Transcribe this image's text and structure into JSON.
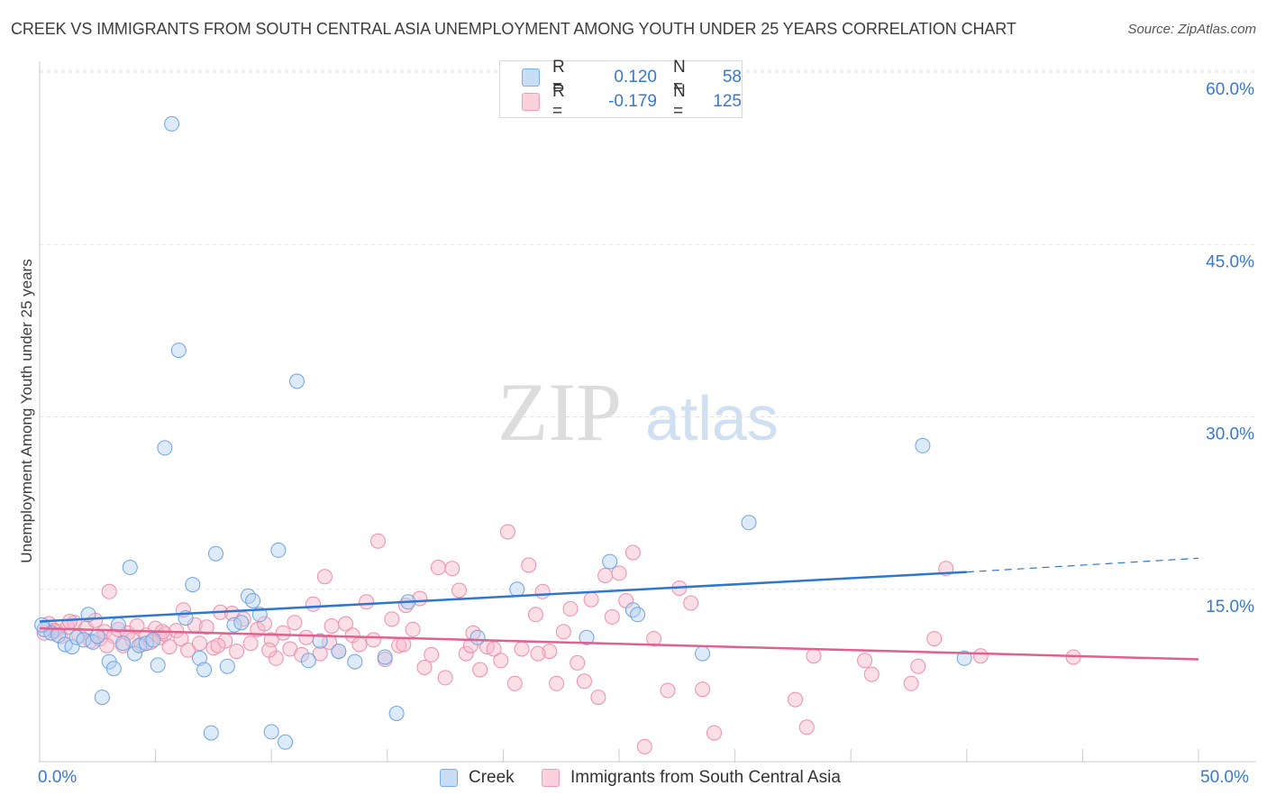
{
  "title": "CREEK VS IMMIGRANTS FROM SOUTH CENTRAL ASIA UNEMPLOYMENT AMONG YOUTH UNDER 25 YEARS CORRELATION CHART",
  "source": "Source: ZipAtlas.com",
  "watermark": {
    "zip": "ZIP",
    "atlas": "atlas"
  },
  "legend_top": {
    "r_label": "R =",
    "n_label": "N =",
    "rows": [
      {
        "name": "Creek",
        "r": "0.120",
        "n": "58",
        "color": "#7aaee8"
      },
      {
        "name": "Immigrants from South Central Asia",
        "r": "-0.179",
        "n": "125",
        "color": "#f29bb5"
      }
    ]
  },
  "legend_bottom": [
    "Creek",
    "Immigrants from South Central Asia"
  ],
  "chart_data": {
    "type": "scatter",
    "title": "CREEK VS IMMIGRANTS FROM SOUTH CENTRAL ASIA UNEMPLOYMENT AMONG YOUTH UNDER 25 YEARS CORRELATION CHART",
    "xlabel": "",
    "ylabel": "Unemployment Among Youth under 25 years",
    "xlim": [
      0,
      50
    ],
    "ylim": [
      0,
      60
    ],
    "x_tick_labels": [
      "0.0%",
      "50.0%"
    ],
    "y_ticks": [
      15,
      30,
      45,
      60
    ],
    "y_tick_labels": [
      "15.0%",
      "30.0%",
      "45.0%",
      "60.0%"
    ],
    "grid": true,
    "legend_position": "top-center",
    "series": [
      {
        "name": "Creek",
        "color": "#7aaee8",
        "line_color": "#2f76cf",
        "trend": {
          "x": [
            0,
            40
          ],
          "y": [
            12.2,
            16.5
          ],
          "dashed_to": [
            50,
            17.7
          ]
        },
        "points": [
          [
            0.2,
            11.5
          ],
          [
            0.5,
            11.2
          ],
          [
            0.8,
            11.0
          ],
          [
            1.1,
            10.2
          ],
          [
            1.4,
            10.0
          ],
          [
            1.6,
            10.8
          ],
          [
            1.9,
            10.6
          ],
          [
            2.1,
            12.8
          ],
          [
            2.3,
            10.4
          ],
          [
            2.5,
            10.9
          ],
          [
            2.7,
            5.6
          ],
          [
            3.0,
            8.7
          ],
          [
            3.2,
            8.1
          ],
          [
            3.4,
            11.9
          ],
          [
            3.6,
            10.3
          ],
          [
            3.9,
            16.9
          ],
          [
            4.1,
            9.4
          ],
          [
            4.3,
            10.1
          ],
          [
            4.6,
            10.3
          ],
          [
            4.9,
            10.6
          ],
          [
            5.1,
            8.4
          ],
          [
            5.4,
            27.3
          ],
          [
            5.7,
            55.5
          ],
          [
            6.0,
            35.8
          ],
          [
            6.3,
            12.5
          ],
          [
            6.6,
            15.4
          ],
          [
            6.9,
            9.0
          ],
          [
            7.1,
            8.0
          ],
          [
            7.4,
            2.5
          ],
          [
            7.6,
            18.1
          ],
          [
            8.1,
            8.3
          ],
          [
            8.4,
            11.9
          ],
          [
            8.7,
            12.1
          ],
          [
            9.0,
            14.4
          ],
          [
            9.2,
            14.0
          ],
          [
            9.5,
            12.8
          ],
          [
            10.0,
            2.6
          ],
          [
            10.3,
            18.4
          ],
          [
            10.6,
            1.7
          ],
          [
            11.1,
            33.1
          ],
          [
            11.6,
            8.8
          ],
          [
            12.1,
            10.5
          ],
          [
            12.9,
            9.6
          ],
          [
            13.6,
            8.7
          ],
          [
            14.9,
            9.1
          ],
          [
            15.4,
            4.2
          ],
          [
            15.9,
            13.9
          ],
          [
            18.9,
            10.8
          ],
          [
            20.6,
            15.0
          ],
          [
            23.6,
            10.8
          ],
          [
            24.6,
            17.4
          ],
          [
            25.6,
            13.2
          ],
          [
            25.8,
            12.8
          ],
          [
            28.6,
            9.4
          ],
          [
            30.6,
            20.8
          ],
          [
            38.1,
            27.5
          ],
          [
            39.9,
            9.0
          ],
          [
            0.1,
            11.9
          ]
        ]
      },
      {
        "name": "Immigrants from South Central Asia",
        "color": "#f29bb5",
        "line_color": "#e0608f",
        "trend": {
          "x": [
            0,
            50
          ],
          "y": [
            11.6,
            8.9
          ]
        },
        "points": [
          [
            0.2,
            11.2
          ],
          [
            0.4,
            12.0
          ],
          [
            0.7,
            11.4
          ],
          [
            0.9,
            10.9
          ],
          [
            1.2,
            11.7
          ],
          [
            1.5,
            12.1
          ],
          [
            1.7,
            11.0
          ],
          [
            2.0,
            11.6
          ],
          [
            2.2,
            10.5
          ],
          [
            2.4,
            12.3
          ],
          [
            2.6,
            10.7
          ],
          [
            2.8,
            11.3
          ],
          [
            3.0,
            14.8
          ],
          [
            3.2,
            10.9
          ],
          [
            3.4,
            11.5
          ],
          [
            3.6,
            10.1
          ],
          [
            3.8,
            11.2
          ],
          [
            4.0,
            10.6
          ],
          [
            4.2,
            11.8
          ],
          [
            4.4,
            10.2
          ],
          [
            4.6,
            11.0
          ],
          [
            4.8,
            10.4
          ],
          [
            5.0,
            11.6
          ],
          [
            5.2,
            10.8
          ],
          [
            5.4,
            11.1
          ],
          [
            5.6,
            10.0
          ],
          [
            5.9,
            11.4
          ],
          [
            6.1,
            10.7
          ],
          [
            6.4,
            9.7
          ],
          [
            6.7,
            11.9
          ],
          [
            6.9,
            10.3
          ],
          [
            7.2,
            11.7
          ],
          [
            7.5,
            9.9
          ],
          [
            7.8,
            13.0
          ],
          [
            8.0,
            10.5
          ],
          [
            8.3,
            12.9
          ],
          [
            8.5,
            9.6
          ],
          [
            8.8,
            12.4
          ],
          [
            9.1,
            10.3
          ],
          [
            9.4,
            11.5
          ],
          [
            9.7,
            12.0
          ],
          [
            10.0,
            10.6
          ],
          [
            10.2,
            9.0
          ],
          [
            10.5,
            11.2
          ],
          [
            10.8,
            9.8
          ],
          [
            11.0,
            12.1
          ],
          [
            11.3,
            9.3
          ],
          [
            11.5,
            10.8
          ],
          [
            11.8,
            13.7
          ],
          [
            12.1,
            9.4
          ],
          [
            12.3,
            16.1
          ],
          [
            12.6,
            11.8
          ],
          [
            12.9,
            9.6
          ],
          [
            13.2,
            12.0
          ],
          [
            13.5,
            11.0
          ],
          [
            13.8,
            10.2
          ],
          [
            14.1,
            13.9
          ],
          [
            14.4,
            10.6
          ],
          [
            14.6,
            19.2
          ],
          [
            14.9,
            8.9
          ],
          [
            15.2,
            12.4
          ],
          [
            15.5,
            10.1
          ],
          [
            15.8,
            13.6
          ],
          [
            16.1,
            11.5
          ],
          [
            16.4,
            14.2
          ],
          [
            16.6,
            8.2
          ],
          [
            16.9,
            9.3
          ],
          [
            17.2,
            16.9
          ],
          [
            17.5,
            7.3
          ],
          [
            17.8,
            16.8
          ],
          [
            18.1,
            14.9
          ],
          [
            18.4,
            9.4
          ],
          [
            18.7,
            11.2
          ],
          [
            19.0,
            8.0
          ],
          [
            19.3,
            10.0
          ],
          [
            19.6,
            9.8
          ],
          [
            19.9,
            8.8
          ],
          [
            20.2,
            20.0
          ],
          [
            20.5,
            6.8
          ],
          [
            20.8,
            9.8
          ],
          [
            21.1,
            17.1
          ],
          [
            21.4,
            12.8
          ],
          [
            21.7,
            14.8
          ],
          [
            22.0,
            9.6
          ],
          [
            22.3,
            6.8
          ],
          [
            22.6,
            11.3
          ],
          [
            22.9,
            13.3
          ],
          [
            23.2,
            8.6
          ],
          [
            23.5,
            7.0
          ],
          [
            23.8,
            14.1
          ],
          [
            24.1,
            5.6
          ],
          [
            24.4,
            16.2
          ],
          [
            24.7,
            12.6
          ],
          [
            25.0,
            16.4
          ],
          [
            25.3,
            14.0
          ],
          [
            25.6,
            18.2
          ],
          [
            26.1,
            1.3
          ],
          [
            27.1,
            6.2
          ],
          [
            27.6,
            15.1
          ],
          [
            28.1,
            13.8
          ],
          [
            28.6,
            6.3
          ],
          [
            29.1,
            2.5
          ],
          [
            32.6,
            5.4
          ],
          [
            33.1,
            3.0
          ],
          [
            35.6,
            8.8
          ],
          [
            35.9,
            7.6
          ],
          [
            37.6,
            6.8
          ],
          [
            37.9,
            8.3
          ],
          [
            38.6,
            10.7
          ],
          [
            39.1,
            16.8
          ],
          [
            40.6,
            9.2
          ],
          [
            0.6,
            11.4
          ],
          [
            1.3,
            12.2
          ],
          [
            2.9,
            10.1
          ],
          [
            5.3,
            11.3
          ],
          [
            6.2,
            13.2
          ],
          [
            7.7,
            10.1
          ],
          [
            9.9,
            9.7
          ],
          [
            12.5,
            10.4
          ],
          [
            15.7,
            10.2
          ],
          [
            18.6,
            10.1
          ],
          [
            21.5,
            9.4
          ],
          [
            26.5,
            10.7
          ],
          [
            33.4,
            9.2
          ],
          [
            44.6,
            9.1
          ]
        ]
      }
    ]
  }
}
